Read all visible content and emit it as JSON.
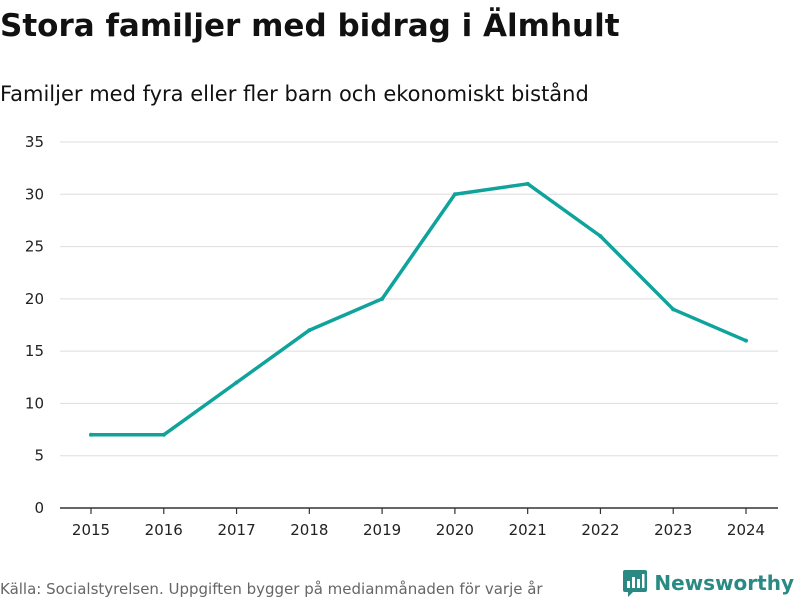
{
  "chart_data": {
    "type": "line",
    "title": "Stora familjer med bidrag i Älmhult",
    "subtitle": "Familjer med fyra eller fler barn och ekonomiskt bistånd",
    "xlabel": "",
    "ylabel": "",
    "categories": [
      "2015",
      "2016",
      "2017",
      "2018",
      "2019",
      "2020",
      "2021",
      "2022",
      "2023",
      "2024"
    ],
    "series": [
      {
        "name": "Familjer",
        "values": [
          7,
          7,
          12,
          17,
          20,
          30,
          31,
          26,
          19,
          16
        ]
      }
    ],
    "ylim": [
      0,
      35
    ],
    "yticks": [
      "0",
      "5",
      "10",
      "15",
      "20",
      "25",
      "30",
      "35"
    ],
    "grid": true,
    "line_color": "#0fa39b"
  },
  "footer": {
    "source": "Källa: Socialstyrelsen. Uppgiften bygger på medianmånaden för varje år",
    "brand": "Newsworthy"
  },
  "colors": {
    "brand": "#2a8a83",
    "grid": "#dddddd",
    "axis": "#333333"
  },
  "icons": {
    "brand_logo": "newsworthy-logo-icon"
  }
}
